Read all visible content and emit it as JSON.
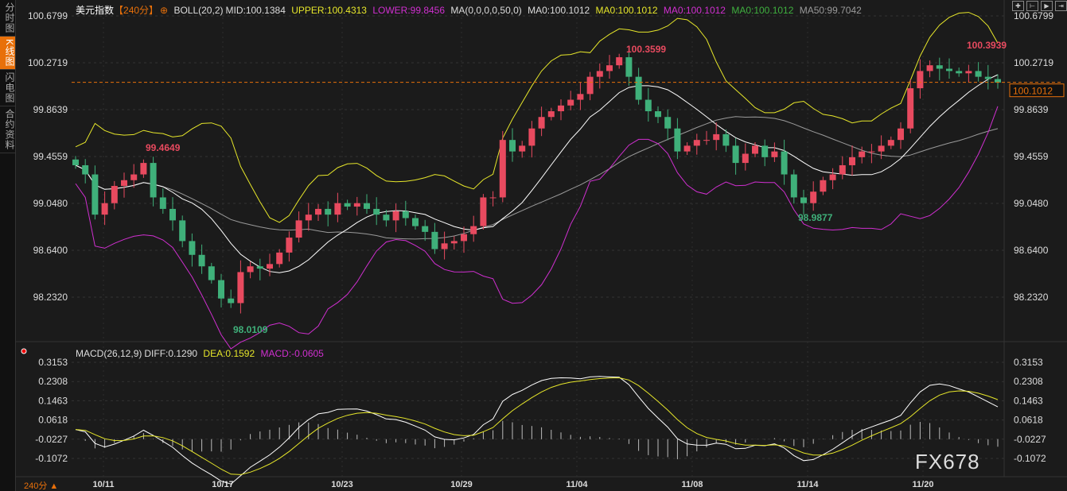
{
  "sidebar": {
    "tabs": [
      {
        "label": "分时图",
        "active": false
      },
      {
        "label": "K线图",
        "active": true
      },
      {
        "label": "闪电图",
        "active": false
      },
      {
        "label": "合约资料",
        "active": false
      }
    ]
  },
  "header": {
    "symbol": "美元指数",
    "period": "【240分】",
    "boll": "BOLL(20,2)",
    "mid": "MID:100.1384",
    "upper": "UPPER:100.4313",
    "lower": "LOWER:99.8456",
    "ma": "MA(0,0,0,0,50,0)",
    "ma0a": "MA0:100.1012",
    "ma0b": "MA0:100.1012",
    "ma0c": "MA0:100.1012",
    "ma0d": "MA0:100.1012",
    "ma50": "MA50:99.7042"
  },
  "macd_legend": {
    "name": "MACD(26,12,9)",
    "diff": "DIFF:0.1290",
    "dea": "DEA:0.1592",
    "macd": "MACD:-0.0605"
  },
  "toolbar": {
    "icons": [
      "crosshair-icon",
      "zoom-range-icon",
      "play-range-icon",
      "move-right-icon"
    ]
  },
  "timeframe": "240分 ▲",
  "watermark": "FX678",
  "colors": {
    "up": "#e84a5f",
    "down": "#3fb07a",
    "mid": "#ffffff",
    "upper": "#e6e62a",
    "lower": "#d02fd0",
    "ma50": "#9a9a9a",
    "diff": "#ffffff",
    "dea": "#e6e62a",
    "accent": "#e8700a"
  },
  "chart_data": [
    {
      "type": "candlestick",
      "title": "美元指数 240分",
      "ylim": [
        98.0,
        100.72
      ],
      "y_ticks": [
        "100.6799",
        "100.2719",
        "99.8639",
        "99.4559",
        "99.0480",
        "98.6400",
        "98.2320"
      ],
      "x_ticks": [
        "10/11",
        "10/17",
        "10/23",
        "10/29",
        "11/04",
        "11/08",
        "11/14",
        "11/20"
      ],
      "current_price": "100.1012",
      "annotations": [
        {
          "label": "99.4649",
          "type": "high"
        },
        {
          "label": "98.0109",
          "type": "low"
        },
        {
          "label": "100.3599",
          "type": "high"
        },
        {
          "label": "98.9877",
          "type": "low"
        },
        {
          "label": "100.3939",
          "type": "high"
        }
      ],
      "closes": [
        99.38,
        99.3,
        98.95,
        99.05,
        99.2,
        99.25,
        99.3,
        99.4,
        99.1,
        99.0,
        98.9,
        98.72,
        98.6,
        98.5,
        98.38,
        98.22,
        98.18,
        98.45,
        98.5,
        98.48,
        98.52,
        98.62,
        98.75,
        98.9,
        98.95,
        99.0,
        98.95,
        99.05,
        99.02,
        99.05,
        99.0,
        98.95,
        98.9,
        98.98,
        98.92,
        98.85,
        98.8,
        98.65,
        98.7,
        98.72,
        98.78,
        98.85,
        99.1,
        99.1,
        99.6,
        99.5,
        99.55,
        99.7,
        99.8,
        99.85,
        99.9,
        99.95,
        100.0,
        100.15,
        100.2,
        100.25,
        100.32,
        100.15,
        99.95,
        99.85,
        99.8,
        99.7,
        99.5,
        99.55,
        99.6,
        99.6,
        99.65,
        99.55,
        99.4,
        99.48,
        99.55,
        99.45,
        99.5,
        99.3,
        99.1,
        99.05,
        99.15,
        99.25,
        99.3,
        99.38,
        99.45,
        99.5,
        99.5,
        99.55,
        99.6,
        99.7,
        100.05,
        100.2,
        100.25,
        100.22,
        100.2,
        100.18,
        100.2,
        100.15,
        100.13,
        100.1
      ]
    },
    {
      "type": "macd",
      "ylim": [
        -0.17,
        0.33
      ],
      "y_ticks": [
        "0.3153",
        "0.2308",
        "0.1463",
        "0.0618",
        "-0.0227",
        "-0.1072"
      ]
    }
  ]
}
